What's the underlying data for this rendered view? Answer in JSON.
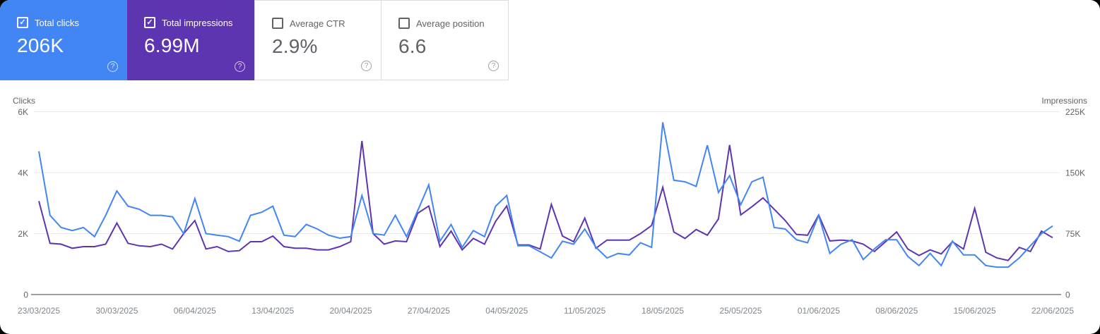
{
  "cards": [
    {
      "label": "Total clicks",
      "value": "206K",
      "checked": true,
      "selected": true,
      "background": "#4285f4"
    },
    {
      "label": "Total impressions",
      "value": "6.99M",
      "checked": true,
      "selected": true,
      "background": "#5e35b1"
    },
    {
      "label": "Average CTR",
      "value": "2.9%",
      "checked": false,
      "selected": false,
      "background": "#ffffff"
    },
    {
      "label": "Average position",
      "value": "6.6",
      "checked": false,
      "selected": false,
      "background": "#ffffff"
    }
  ],
  "chart_data": {
    "type": "line",
    "left_axis": {
      "label": "Clicks",
      "ticks": [
        "6K",
        "4K",
        "2K",
        "0"
      ],
      "range": [
        0,
        6000
      ]
    },
    "right_axis": {
      "label": "Impressions",
      "ticks": [
        "225K",
        "150K",
        "75K",
        "0"
      ],
      "range": [
        0,
        225000
      ]
    },
    "x_axis": {
      "tick_labels": [
        "23/03/2025",
        "30/03/2025",
        "06/04/2025",
        "13/04/2025",
        "20/04/2025",
        "27/04/2025",
        "04/05/2025",
        "11/05/2025",
        "18/05/2025",
        "25/05/2025",
        "01/06/2025",
        "08/06/2025",
        "15/06/2025",
        "22/06/2025"
      ],
      "tick_indices": [
        0,
        7,
        14,
        21,
        28,
        35,
        42,
        49,
        56,
        63,
        70,
        77,
        84,
        91
      ],
      "points": 92
    },
    "grid": true,
    "grid_color": "#e8eaed",
    "baseline_color": "#9aa0a6",
    "series": [
      {
        "name": "Total clicks",
        "axis": "left",
        "color": "#4285f4",
        "values": [
          4700,
          2600,
          2200,
          2100,
          2200,
          1900,
          2600,
          3400,
          2900,
          2800,
          2600,
          2600,
          2550,
          2000,
          3150,
          2000,
          1950,
          1900,
          1750,
          2600,
          2700,
          2900,
          1950,
          1900,
          2300,
          2150,
          1950,
          1850,
          1900,
          3250,
          2000,
          1950,
          2600,
          1900,
          2750,
          3600,
          1750,
          2300,
          1550,
          2100,
          1900,
          2900,
          3250,
          1600,
          1600,
          1400,
          1200,
          1750,
          1650,
          2150,
          1550,
          1200,
          1350,
          1300,
          1700,
          1550,
          5650,
          3750,
          3700,
          3550,
          4900,
          3350,
          3900,
          2950,
          3700,
          3850,
          2200,
          2150,
          1800,
          1700,
          2600,
          1350,
          1650,
          1800,
          1150,
          1500,
          1800,
          1800,
          1250,
          950,
          1350,
          950,
          1750,
          1300,
          1300,
          950,
          900,
          900,
          1200,
          1600,
          2000,
          2250
        ]
      },
      {
        "name": "Total impressions",
        "axis": "right",
        "color": "#5e35b1",
        "values": [
          115000,
          63000,
          62000,
          57000,
          59000,
          59000,
          62000,
          88000,
          63000,
          60000,
          59000,
          62000,
          56000,
          75000,
          91000,
          56000,
          59000,
          53000,
          54000,
          65000,
          65000,
          72000,
          59000,
          57000,
          57000,
          55000,
          55000,
          59000,
          65000,
          189000,
          75000,
          62000,
          66000,
          65000,
          100000,
          109000,
          59000,
          78000,
          55000,
          69000,
          62000,
          90000,
          109000,
          61000,
          61000,
          56000,
          111000,
          72000,
          65000,
          94000,
          57000,
          67000,
          67000,
          67000,
          75000,
          85000,
          132000,
          77000,
          69000,
          80000,
          73000,
          93000,
          184000,
          98000,
          108000,
          119000,
          105000,
          91000,
          74000,
          73000,
          98000,
          66000,
          67000,
          66000,
          62000,
          53000,
          65000,
          77000,
          56000,
          48000,
          55000,
          50000,
          65000,
          56000,
          106000,
          52000,
          45000,
          42000,
          58000,
          53000,
          78000,
          70000
        ]
      }
    ]
  }
}
